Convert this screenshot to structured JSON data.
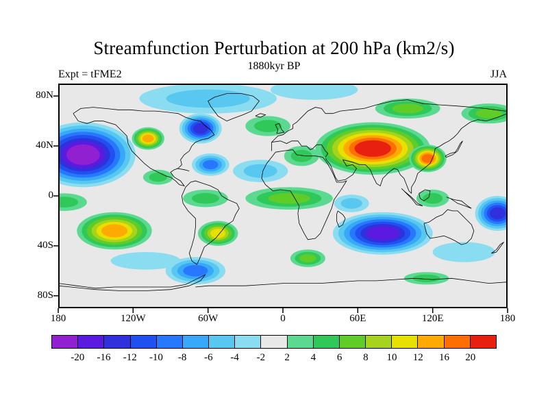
{
  "chart_data": {
    "type": "heatmap",
    "subtype": "filled-contour-map",
    "title": "Streamfunction Perturbation at 200 hPa (km2/s)",
    "subtitle": "1880kyr BP",
    "experiment": "Expt = tFME2",
    "season": "JJA",
    "units": "km2/s",
    "projection": "equirectangular",
    "lon_range": [
      -180,
      180
    ],
    "lat_range": [
      -90,
      90
    ],
    "colorbar_position": "bottom",
    "grid": false,
    "contour_levels": [
      -20,
      -16,
      -12,
      -10,
      -8,
      -6,
      -4,
      -2,
      2,
      4,
      6,
      8,
      10,
      12,
      16,
      20
    ],
    "colorbar_labels": [
      "-20",
      "-16",
      "-12",
      "-10",
      "-8",
      "-6",
      "-4",
      "-2",
      "2",
      "4",
      "6",
      "8",
      "10",
      "12",
      "16",
      "20"
    ],
    "palette": [
      "#9020d0",
      "#5a1ae0",
      "#3030dd",
      "#2050f0",
      "#2878ff",
      "#38a8f8",
      "#58c8f0",
      "#8adcf0",
      "#e8e8e8",
      "#5cd990",
      "#30c858",
      "#60cc28",
      "#a6d41c",
      "#e8e000",
      "#ffaa00",
      "#ff6f00",
      "#e82010"
    ],
    "lat_ticks": [
      {
        "label": "80N",
        "value": 80
      },
      {
        "label": "40N",
        "value": 40
      },
      {
        "label": "0",
        "value": 0
      },
      {
        "label": "40S",
        "value": -40
      },
      {
        "label": "80S",
        "value": -80
      }
    ],
    "lon_ticks": [
      {
        "label": "180",
        "value": -180
      },
      {
        "label": "120W",
        "value": -120
      },
      {
        "label": "60W",
        "value": -60
      },
      {
        "label": "0",
        "value": 0
      },
      {
        "label": "60E",
        "value": 60
      },
      {
        "label": "120E",
        "value": 120
      },
      {
        "label": "180",
        "value": 180
      }
    ],
    "anomaly_centers": [
      {
        "name": "arctic-atlantic-low",
        "lon": -60,
        "lat": 78,
        "peak": -6,
        "rx_deg": 55,
        "ry_deg": 12
      },
      {
        "name": "arctic-europe-low",
        "lon": 25,
        "lat": 85,
        "peak": -4,
        "rx_deg": 35,
        "ry_deg": 8
      },
      {
        "name": "siberia-green-high",
        "lon": 100,
        "lat": 70,
        "peak": 7,
        "rx_deg": 26,
        "ry_deg": 8
      },
      {
        "name": "bering-green-high",
        "lon": 165,
        "lat": 66,
        "peak": 7,
        "rx_deg": 22,
        "ry_deg": 8
      },
      {
        "name": "north-pacific-low",
        "lon": -160,
        "lat": 33,
        "peak": -22,
        "rx_deg": 42,
        "ry_deg": 26
      },
      {
        "name": "west-canada-high",
        "lon": -108,
        "lat": 46,
        "peak": 13,
        "rx_deg": 13,
        "ry_deg": 9
      },
      {
        "name": "east-canada-low",
        "lon": -66,
        "lat": 54,
        "peak": -14,
        "rx_deg": 17,
        "ry_deg": 12
      },
      {
        "name": "west-atlantic-low",
        "lon": -58,
        "lat": 25,
        "peak": -10,
        "rx_deg": 15,
        "ry_deg": 9
      },
      {
        "name": "north-atlantic-green-high",
        "lon": -12,
        "lat": 56,
        "peak": 6,
        "rx_deg": 18,
        "ry_deg": 8
      },
      {
        "name": "mediterranean-green-high",
        "lon": 15,
        "lat": 32,
        "peak": 5,
        "rx_deg": 14,
        "ry_deg": 8
      },
      {
        "name": "sahara-west-low",
        "lon": -18,
        "lat": 20,
        "peak": -5,
        "rx_deg": 22,
        "ry_deg": 9
      },
      {
        "name": "central-asia-high",
        "lon": 72,
        "lat": 38,
        "peak": 23,
        "rx_deg": 46,
        "ry_deg": 21
      },
      {
        "name": "east-asia-high",
        "lon": 116,
        "lat": 30,
        "peak": 17,
        "rx_deg": 15,
        "ry_deg": 11
      },
      {
        "name": "mexico-green-high",
        "lon": -100,
        "lat": 15,
        "peak": 5,
        "rx_deg": 12,
        "ry_deg": 6
      },
      {
        "name": "equator-africa-green-high",
        "lon": 5,
        "lat": -2,
        "peak": 7,
        "rx_deg": 35,
        "ry_deg": 9
      },
      {
        "name": "equator-samerica-green-high",
        "lon": -62,
        "lat": -2,
        "peak": 5,
        "rx_deg": 18,
        "ry_deg": 7
      },
      {
        "name": "midpacific-green-high",
        "lon": -175,
        "lat": -5,
        "peak": 5,
        "rx_deg": 18,
        "ry_deg": 7
      },
      {
        "name": "indian-equator-low",
        "lon": 55,
        "lat": -6,
        "peak": -5,
        "rx_deg": 14,
        "ry_deg": 7
      },
      {
        "name": "maritime-green-high",
        "lon": 120,
        "lat": -2,
        "peak": 5,
        "rx_deg": 13,
        "ry_deg": 7
      },
      {
        "name": "southeast-pacific-high",
        "lon": -135,
        "lat": -28,
        "peak": 15,
        "rx_deg": 30,
        "ry_deg": 15
      },
      {
        "name": "south-america-high",
        "lon": -52,
        "lat": -30,
        "peak": 11,
        "rx_deg": 16,
        "ry_deg": 10
      },
      {
        "name": "southern-ocean-pacific-low",
        "lon": -110,
        "lat": -52,
        "peak": -4,
        "rx_deg": 28,
        "ry_deg": 7
      },
      {
        "name": "drake-passage-low",
        "lon": -70,
        "lat": -60,
        "peak": -10,
        "rx_deg": 24,
        "ry_deg": 11
      },
      {
        "name": "south-indian-low",
        "lon": 80,
        "lat": -30,
        "peak": -18,
        "rx_deg": 40,
        "ry_deg": 17
      },
      {
        "name": "southwest-pacific-low",
        "lon": 172,
        "lat": -14,
        "peak": -13,
        "rx_deg": 18,
        "ry_deg": 14
      },
      {
        "name": "south-africa-green-high",
        "lon": 20,
        "lat": -50,
        "peak": 7,
        "rx_deg": 14,
        "ry_deg": 7
      },
      {
        "name": "southern-ocean-east-low",
        "lon": 145,
        "lat": -45,
        "peak": -4,
        "rx_deg": 25,
        "ry_deg": 8
      },
      {
        "name": "antarctic-east-green-high",
        "lon": 115,
        "lat": -66,
        "peak": 5,
        "rx_deg": 18,
        "ry_deg": 5
      }
    ]
  }
}
